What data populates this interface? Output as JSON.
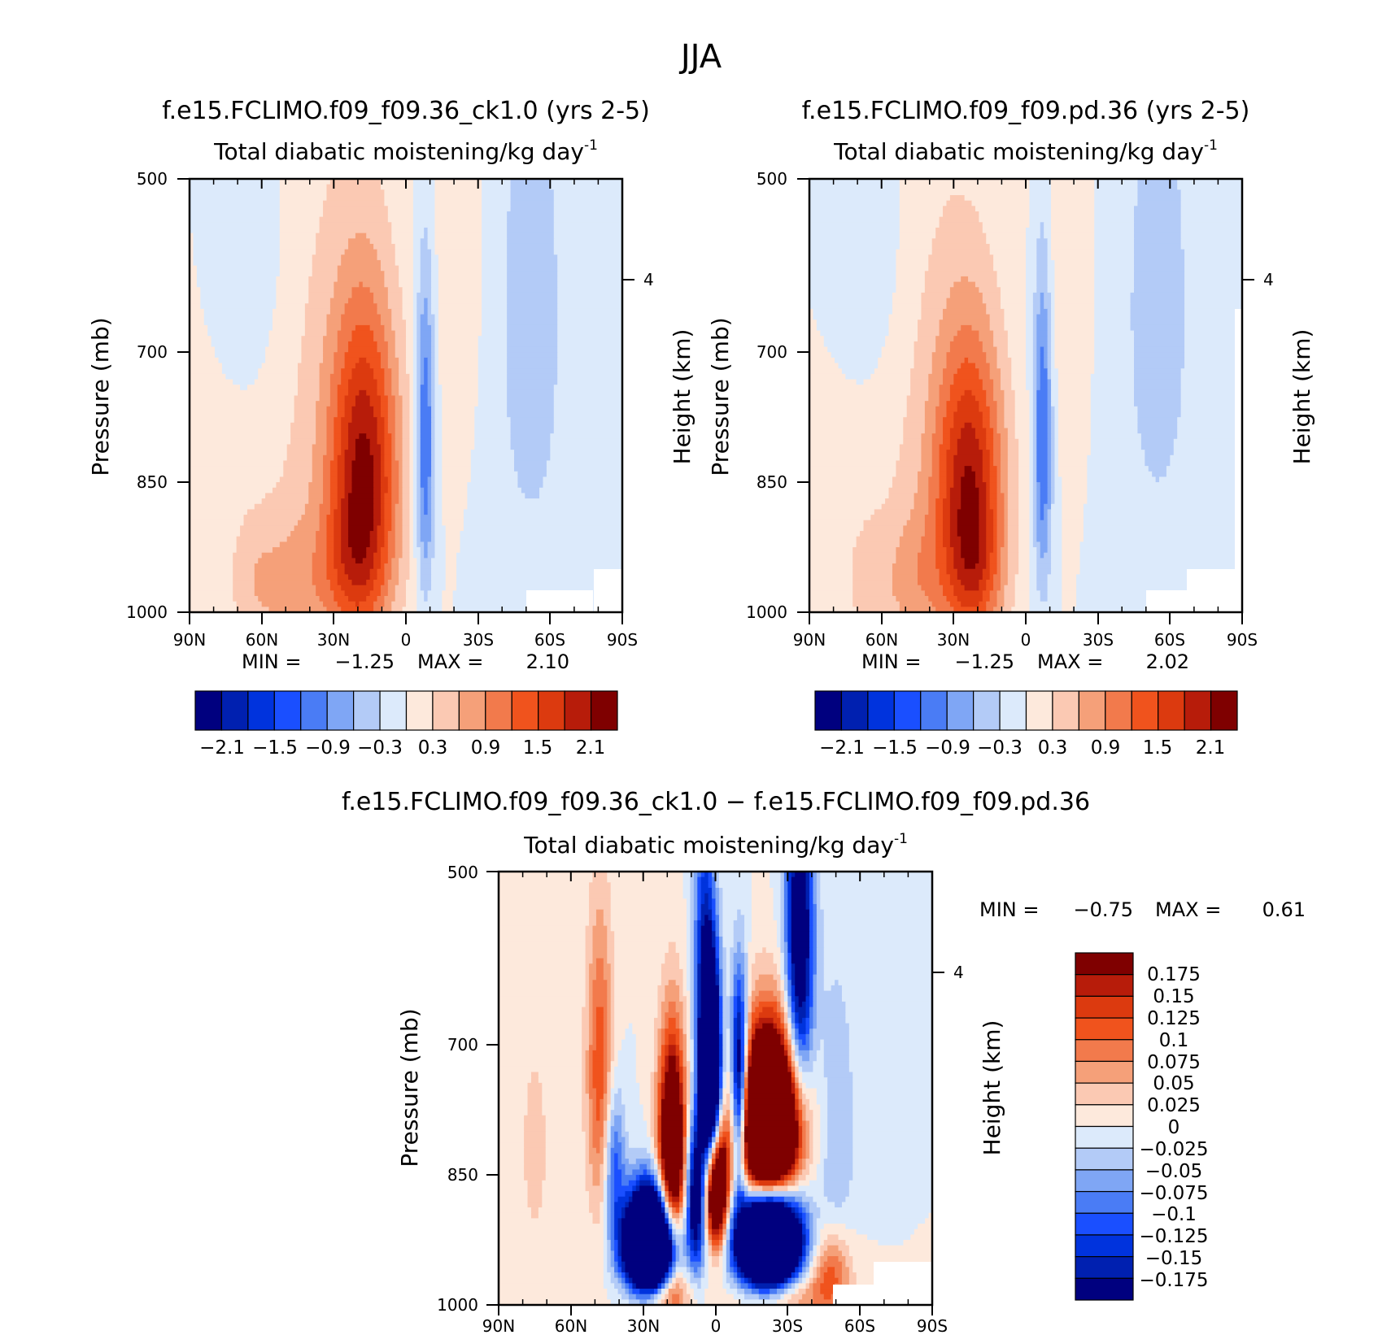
{
  "figure": {
    "title": "JJA",
    "colors": {
      "div_colormap": [
        "#00007f",
        "#0020b0",
        "#0033dd",
        "#1a4fff",
        "#4a7cf5",
        "#7fa6f5",
        "#b3cbf7",
        "#dceafb",
        "#fde9dc",
        "#fbc9b3",
        "#f5a079",
        "#f27a4c",
        "#f0531d",
        "#dc3a0f",
        "#b71c0a",
        "#7f0000"
      ],
      "white": "#ffffff"
    }
  },
  "chart_data": [
    {
      "id": "panel_a",
      "type": "heatmap",
      "title": "f.e15.FCLIMO.f09_f09.36_ck1.0 (yrs 2-5)",
      "variable_label": "Total diabatic moistening",
      "units_label": "/kg day",
      "units_exponent": "-1",
      "xlabel": "",
      "ylabel": "Pressure (mb)",
      "ylabel_right": "Height (km)",
      "x_ticks": [
        "90N",
        "60N",
        "30N",
        "0",
        "30S",
        "60S",
        "90S"
      ],
      "y_ticks": [
        "500",
        "700",
        "850",
        "1000"
      ],
      "y_tick_values": [
        500,
        700,
        850,
        1000
      ],
      "ylim": [
        500,
        1000
      ],
      "xlim": [
        90,
        -90
      ],
      "right_ticks": [
        "4"
      ],
      "right_tick_pressure": [
        617
      ],
      "min_label": "MIN =",
      "min_value": "−1.25",
      "max_label": "MAX =",
      "max_value": "2.10",
      "colorbar_ticks": [
        "−2.1",
        "−1.5",
        "−0.9",
        "−0.3",
        "0.3",
        "0.9",
        "1.5",
        "2.1"
      ],
      "levels": [
        -2.1,
        -1.8,
        -1.5,
        -1.2,
        -0.9,
        -0.6,
        -0.3,
        0,
        0.3,
        0.6,
        0.9,
        1.2,
        1.5,
        1.8,
        2.1
      ],
      "features": [
        {
          "lat": 17,
          "p": 805,
          "slat": 10,
          "sp": 150,
          "amp": 2.0
        },
        {
          "lat": 24,
          "p": 935,
          "slat": 9,
          "sp": 70,
          "amp": 0.5
        },
        {
          "lat": -8,
          "p": 760,
          "slat": 2.8,
          "sp": 140,
          "amp": -1.25
        },
        {
          "lat": 35,
          "p": 830,
          "slat": 17,
          "sp": 300,
          "amp": 0.4
        },
        {
          "lat": 75,
          "p": 820,
          "slat": 14,
          "sp": 240,
          "amp": 0.12
        },
        {
          "lat": 47,
          "p": 960,
          "slat": 9,
          "sp": 70,
          "amp": 0.45
        },
        {
          "lat": 63,
          "p": 950,
          "slat": 7,
          "sp": 70,
          "amp": 0.35
        },
        {
          "lat": -52,
          "p": 630,
          "slat": 12,
          "sp": 230,
          "amp": -0.45
        },
        {
          "lat": 65,
          "p": 560,
          "slat": 12,
          "sp": 120,
          "amp": -0.3
        },
        {
          "lat": -22,
          "p": 560,
          "slat": 7,
          "sp": 130,
          "amp": 0.25
        }
      ]
    },
    {
      "id": "panel_b",
      "type": "heatmap",
      "title": "f.e15.FCLIMO.f09_f09.pd.36 (yrs 2-5)",
      "variable_label": "Total diabatic moistening",
      "units_label": "/kg day",
      "units_exponent": "-1",
      "xlabel": "",
      "ylabel": "Pressure (mb)",
      "ylabel_right": "Height (km)",
      "x_ticks": [
        "90N",
        "60N",
        "30N",
        "0",
        "30S",
        "60S",
        "90S"
      ],
      "y_ticks": [
        "500",
        "700",
        "850",
        "1000"
      ],
      "y_tick_values": [
        500,
        700,
        850,
        1000
      ],
      "ylim": [
        500,
        1000
      ],
      "xlim": [
        90,
        -90
      ],
      "right_ticks": [
        "4"
      ],
      "right_tick_pressure": [
        617
      ],
      "min_label": "MIN =",
      "min_value": "−1.25",
      "max_label": "MAX =",
      "max_value": "2.02",
      "colorbar_ticks": [
        "−2.1",
        "−1.5",
        "−0.9",
        "−0.3",
        "0.3",
        "0.9",
        "1.5",
        "2.1"
      ],
      "levels": [
        -2.1,
        -1.8,
        -1.5,
        -1.2,
        -0.9,
        -0.6,
        -0.3,
        0,
        0.3,
        0.6,
        0.9,
        1.2,
        1.5,
        1.8,
        2.1
      ],
      "features": [
        {
          "lat": 23,
          "p": 830,
          "slat": 10,
          "sp": 140,
          "amp": 1.9
        },
        {
          "lat": 21,
          "p": 945,
          "slat": 8,
          "sp": 60,
          "amp": 0.45
        },
        {
          "lat": -7,
          "p": 755,
          "slat": 2.8,
          "sp": 140,
          "amp": -1.25
        },
        {
          "lat": 38,
          "p": 830,
          "slat": 16,
          "sp": 280,
          "amp": 0.4
        },
        {
          "lat": 72,
          "p": 820,
          "slat": 13,
          "sp": 230,
          "amp": 0.12
        },
        {
          "lat": 47,
          "p": 950,
          "slat": 8,
          "sp": 70,
          "amp": 0.45
        },
        {
          "lat": 65,
          "p": 955,
          "slat": 6,
          "sp": 60,
          "amp": 0.35
        },
        {
          "lat": -55,
          "p": 620,
          "slat": 12,
          "sp": 210,
          "amp": -0.45
        },
        {
          "lat": 65,
          "p": 560,
          "slat": 12,
          "sp": 120,
          "amp": -0.3
        },
        {
          "lat": -17,
          "p": 560,
          "slat": 6,
          "sp": 130,
          "amp": 0.25
        }
      ]
    },
    {
      "id": "panel_diff",
      "type": "heatmap",
      "title": "f.e15.FCLIMO.f09_f09.36_ck1.0 − f.e15.FCLIMO.f09_f09.pd.36",
      "variable_label": "Total diabatic moistening",
      "units_label": "/kg day",
      "units_exponent": "-1",
      "xlabel": "",
      "ylabel": "Pressure (mb)",
      "ylabel_right": "Height (km)",
      "x_ticks": [
        "90N",
        "60N",
        "30N",
        "0",
        "30S",
        "60S",
        "90S"
      ],
      "y_ticks": [
        "500",
        "700",
        "850",
        "1000"
      ],
      "y_tick_values": [
        500,
        700,
        850,
        1000
      ],
      "ylim": [
        500,
        1000
      ],
      "xlim": [
        90,
        -90
      ],
      "right_ticks": [
        "4"
      ],
      "right_tick_pressure": [
        617
      ],
      "min_label": "MIN =",
      "min_value": "−0.75",
      "max_label": "MAX =",
      "max_value": "0.61",
      "colorbar_ticks": [
        "0.175",
        "0.15",
        "0.125",
        "0.1",
        "0.075",
        "0.05",
        "0.025",
        "0",
        "−0.025",
        "−0.05",
        "−0.075",
        "−0.1",
        "−0.125",
        "−0.15",
        "−0.175"
      ],
      "levels": [
        -0.175,
        -0.15,
        -0.125,
        -0.1,
        -0.075,
        -0.05,
        -0.025,
        0,
        0.025,
        0.05,
        0.075,
        0.1,
        0.125,
        0.15,
        0.175
      ],
      "features": [
        {
          "lat": -22,
          "p": 755,
          "slat": 9,
          "sp": 75,
          "amp": 0.6
        },
        {
          "lat": -22,
          "p": 900,
          "slat": 9,
          "sp": 55,
          "amp": -0.7
        },
        {
          "lat": 27,
          "p": 915,
          "slat": 7,
          "sp": 55,
          "amp": -0.75
        },
        {
          "lat": 2,
          "p": 700,
          "slat": 3,
          "sp": 90,
          "amp": -0.45
        },
        {
          "lat": -10,
          "p": 710,
          "slat": 2.5,
          "sp": 80,
          "amp": -0.35
        },
        {
          "lat": 0,
          "p": 830,
          "slat": 3.5,
          "sp": 55,
          "amp": 0.45
        },
        {
          "lat": 18,
          "p": 790,
          "slat": 4,
          "sp": 100,
          "amp": 0.35
        },
        {
          "lat": 8,
          "p": 840,
          "slat": 3,
          "sp": 70,
          "amp": -0.25
        },
        {
          "lat": 48,
          "p": 690,
          "slat": 4,
          "sp": 120,
          "amp": 0.12
        },
        {
          "lat": 42,
          "p": 800,
          "slat": 3,
          "sp": 70,
          "amp": -0.12
        },
        {
          "lat": 25,
          "p": 980,
          "slat": 8,
          "sp": 30,
          "amp": 0.25
        },
        {
          "lat": -25,
          "p": 985,
          "slat": 12,
          "sp": 30,
          "amp": 0.15
        },
        {
          "lat": -35,
          "p": 560,
          "slat": 4,
          "sp": 120,
          "amp": -0.25
        },
        {
          "lat": 5,
          "p": 560,
          "slat": 3,
          "sp": 100,
          "amp": -0.12
        },
        {
          "lat": -48,
          "p": 950,
          "slat": 6,
          "sp": 50,
          "amp": 0.12
        },
        {
          "lat": 75,
          "p": 780,
          "slat": 7,
          "sp": 150,
          "amp": 0.03
        },
        {
          "lat": -50,
          "p": 760,
          "slat": 6,
          "sp": 140,
          "amp": -0.05
        }
      ]
    }
  ]
}
